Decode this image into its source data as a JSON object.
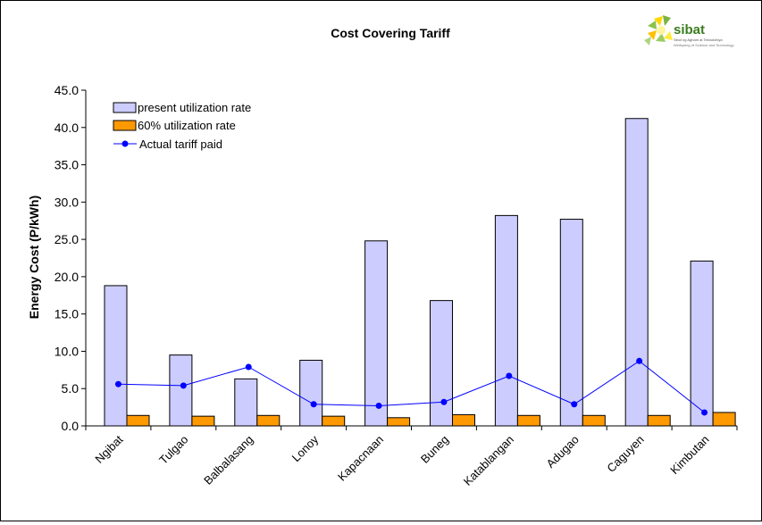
{
  "logo": {
    "name": "sibat",
    "tagline": "Sibol ng Agham at Teknolohiya",
    "subtagline": "Wellspring of Science and Technology"
  },
  "chart_data": {
    "type": "bar",
    "title": "Cost Covering Tariff",
    "xlabel": "",
    "ylabel": "Energy Cost (P/kWh)",
    "ylim": [
      0,
      45
    ],
    "ytick_step": 5,
    "ytick_labels": [
      "0.0",
      "5.0",
      "10.0",
      "15.0",
      "20.0",
      "25.0",
      "30.0",
      "35.0",
      "40.0",
      "45.0"
    ],
    "grid": false,
    "legend_position": "top-left",
    "categories": [
      "Ngibat",
      "Tulgao",
      "Balbalasang",
      "Lonoy",
      "Kapacnaan",
      "Buneg",
      "Katablangan",
      "Adugao",
      "Caguyen",
      "Kimbutan"
    ],
    "series": [
      {
        "name": "present utilization rate",
        "kind": "bar",
        "color": "#CCCCFF",
        "values": [
          18.8,
          9.5,
          6.3,
          8.8,
          24.8,
          16.8,
          28.2,
          27.7,
          41.2,
          22.1
        ]
      },
      {
        "name": "60% utilization rate",
        "kind": "bar",
        "color": "#FF9900",
        "values": [
          1.4,
          1.3,
          1.4,
          1.3,
          1.1,
          1.5,
          1.4,
          1.4,
          1.4,
          1.8
        ]
      },
      {
        "name": "Actual tariff paid",
        "kind": "line",
        "color": "#0000FF",
        "values": [
          5.6,
          5.4,
          7.9,
          2.9,
          2.7,
          3.2,
          6.7,
          2.9,
          8.7,
          1.8
        ]
      }
    ]
  }
}
